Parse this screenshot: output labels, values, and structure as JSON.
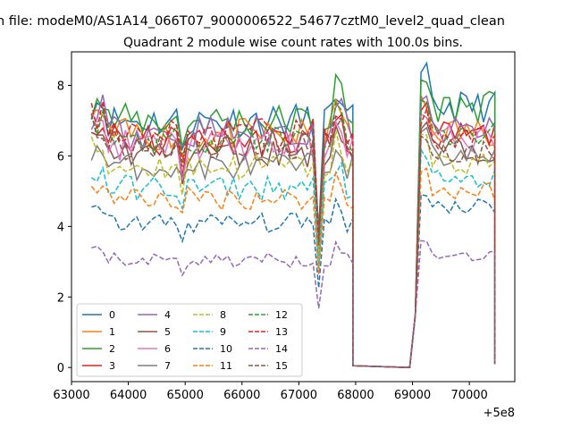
{
  "chart_data": {
    "type": "line",
    "suptitle": "n file: modeM0/AS1A14_066T07_9000006522_54677cztM0_level2_quad_clean",
    "title": "Quadrant 2 module wise count rates with 100.0s bins.",
    "xlabel": "",
    "ylabel": "",
    "x_offset_label": "+5e8",
    "xlim": [
      63000,
      70800
    ],
    "ylim": [
      -0.4,
      8.95
    ],
    "x_ticks": [
      63000,
      64000,
      65000,
      66000,
      67000,
      68000,
      69000,
      70000
    ],
    "x_tick_labels": [
      "63000",
      "64000",
      "65000",
      "66000",
      "67000",
      "68000",
      "69000",
      "70000"
    ],
    "y_ticks": [
      0,
      2,
      4,
      6,
      8
    ],
    "y_tick_labels": [
      "0",
      "2",
      "4",
      "6",
      "8"
    ],
    "grid": false,
    "legend_placement": "lower-left",
    "legend_columns": 4,
    "x_start": 63350,
    "x_step": 100,
    "dip_x": 67350,
    "dip_scale": 0.55,
    "gap_start": 67900,
    "gap_end": 69000,
    "x_end": 70450,
    "series": [
      {
        "name": "0",
        "color": "#1f77b4",
        "style": "solid",
        "level": 7.0,
        "end": 7.4
      },
      {
        "name": "1",
        "color": "#ff7f0e",
        "style": "solid",
        "level": 6.6,
        "end": 6.7
      },
      {
        "name": "2",
        "color": "#2ca02c",
        "style": "solid",
        "level": 7.0,
        "end": 7.4
      },
      {
        "name": "3",
        "color": "#d62728",
        "style": "solid",
        "level": 6.4,
        "end": 6.6
      },
      {
        "name": "4",
        "color": "#9467bd",
        "style": "solid",
        "level": 6.7,
        "end": 6.7
      },
      {
        "name": "5",
        "color": "#8c564b",
        "style": "solid",
        "level": 6.1,
        "end": 6.2
      },
      {
        "name": "6",
        "color": "#e377c2",
        "style": "solid",
        "level": 6.3,
        "end": 6.5
      },
      {
        "name": "7",
        "color": "#7f7f7f",
        "style": "solid",
        "level": 5.7,
        "end": 6.0
      },
      {
        "name": "8",
        "color": "#bcbd22",
        "style": "dashed",
        "level": 5.7,
        "end": 5.8
      },
      {
        "name": "9",
        "color": "#17becf",
        "style": "dashed",
        "level": 5.1,
        "end": 5.3
      },
      {
        "name": "10",
        "color": "#1f77b4",
        "style": "dashed",
        "level": 4.1,
        "end": 4.6
      },
      {
        "name": "11",
        "color": "#ff7f0e",
        "style": "dashed",
        "level": 4.8,
        "end": 5.0
      },
      {
        "name": "12",
        "color": "#2ca02c",
        "style": "dashed",
        "level": 6.5,
        "end": 6.6
      },
      {
        "name": "13",
        "color": "#d62728",
        "style": "dashed",
        "level": 6.6,
        "end": 6.4
      },
      {
        "name": "14",
        "color": "#9467bd",
        "style": "dashed",
        "level": 3.05,
        "end": 3.2
      },
      {
        "name": "15",
        "color": "#8c564b",
        "style": "dashed",
        "level": 6.3,
        "end": 6.1
      }
    ]
  }
}
